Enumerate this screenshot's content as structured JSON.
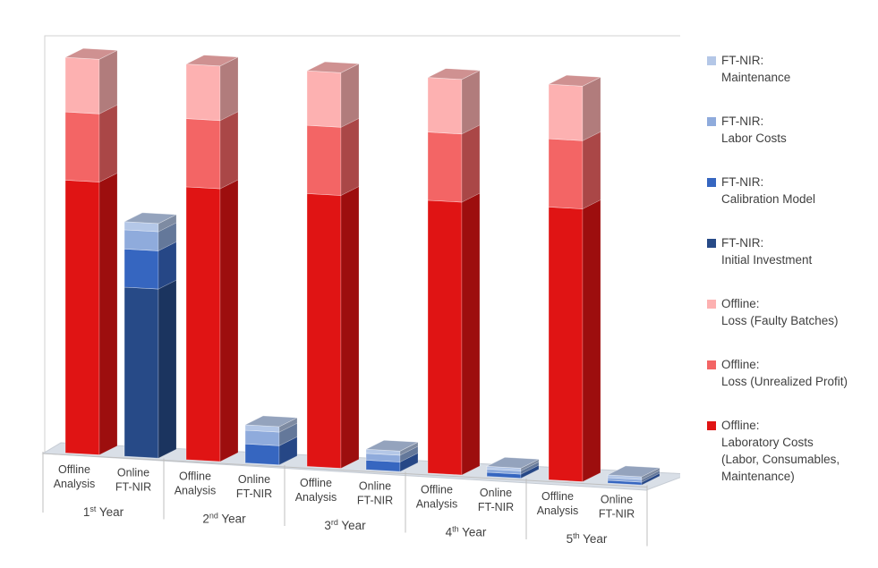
{
  "chart_data": {
    "type": "bar",
    "stacked": true,
    "three_d": true,
    "groups": [
      {
        "label_main": "1",
        "label_sup": "st",
        "label_suffix": " Year",
        "bars": [
          {
            "label_lines": [
              "Offline",
              "Analysis"
            ],
            "kind": "offline",
            "values": [
              100,
              25,
              20
            ]
          },
          {
            "label_lines": [
              "Online",
              "FT-NIR"
            ],
            "kind": "online",
            "values": [
              62,
              14,
              7,
              3
            ]
          }
        ]
      },
      {
        "label_main": "2",
        "label_sup": "nd",
        "label_suffix": " Year",
        "bars": [
          {
            "label_lines": [
              "Offline",
              "Analysis"
            ],
            "kind": "offline",
            "values": [
              100,
              25,
              20
            ]
          },
          {
            "label_lines": [
              "Online",
              "FT-NIR"
            ],
            "kind": "online",
            "values": [
              0,
              7,
              5,
              2
            ]
          }
        ]
      },
      {
        "label_main": "3",
        "label_sup": "rd",
        "label_suffix": " Year",
        "bars": [
          {
            "label_lines": [
              "Offline",
              "Analysis"
            ],
            "kind": "offline",
            "values": [
              100,
              25,
              20
            ]
          },
          {
            "label_lines": [
              "Online",
              "FT-NIR"
            ],
            "kind": "online",
            "values": [
              0,
              3.5,
              2.5,
              1.5
            ]
          }
        ]
      },
      {
        "label_main": "4",
        "label_sup": "th",
        "label_suffix": " Year",
        "bars": [
          {
            "label_lines": [
              "Offline",
              "Analysis"
            ],
            "kind": "offline",
            "values": [
              100,
              25,
              20
            ]
          },
          {
            "label_lines": [
              "Online",
              "FT-NIR"
            ],
            "kind": "online",
            "values": [
              0,
              1.5,
              1.2,
              1
            ]
          }
        ]
      },
      {
        "label_main": "5",
        "label_sup": "th",
        "label_suffix": " Year",
        "bars": [
          {
            "label_lines": [
              "Offline",
              "Analysis"
            ],
            "kind": "offline",
            "values": [
              100,
              25,
              20
            ]
          },
          {
            "label_lines": [
              "Online",
              "FT-NIR"
            ],
            "kind": "online",
            "values": [
              0,
              1,
              1,
              1
            ]
          }
        ]
      }
    ],
    "series": [
      {
        "name": "Offline:\nLaboratory Costs\n(Labor, Consumables,\nMaintenance)",
        "kind": "offline",
        "index": 0,
        "color": "#e01414"
      },
      {
        "name": "Offline:\nLoss (Unrealized Profit)",
        "kind": "offline",
        "index": 1,
        "color": "#f36565"
      },
      {
        "name": "Offline:\nLoss (Faulty Batches)",
        "kind": "offline",
        "index": 2,
        "color": "#fdb1b1"
      },
      {
        "name": "FT-NIR:\nInitial Investment",
        "kind": "online",
        "index": 0,
        "color": "#274a87"
      },
      {
        "name": "FT-NIR:\nCalibration Model",
        "kind": "online",
        "index": 1,
        "color": "#3666c0"
      },
      {
        "name": "FT-NIR:\nLabor Costs",
        "kind": "online",
        "index": 2,
        "color": "#8fabdc"
      },
      {
        "name": "FT-NIR:\nMaintenance",
        "kind": "online",
        "index": 3,
        "color": "#b4c7e7"
      }
    ],
    "legend": {
      "position": "right",
      "order": [
        6,
        5,
        4,
        3,
        2,
        1,
        0
      ]
    },
    "grid": false
  }
}
